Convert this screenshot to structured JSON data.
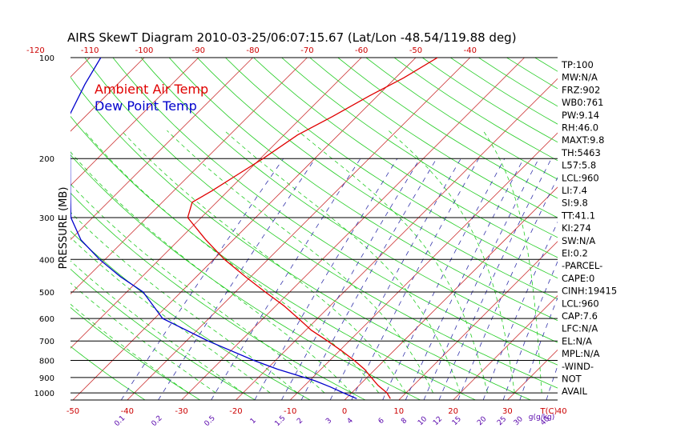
{
  "chart_data": {
    "type": "line",
    "title": "AIRS SkewT Diagram 2010-03-25/06:07:15.67 (Lat/Lon -48.54/119.88 deg)",
    "ylabel": "PRESSURE (MB)",
    "xlabel": "T(C)",
    "mixing_ratio_label": "g(g/kg)",
    "y_scale": "log",
    "ylim": [
      1050,
      100
    ],
    "pressure_ticks": [
      100,
      200,
      300,
      400,
      500,
      600,
      700,
      800,
      900,
      1000
    ],
    "bottom_temp_ticks": [
      -50,
      -40,
      -30,
      -20,
      -10,
      0,
      10,
      20,
      30,
      40
    ],
    "top_temp_ticks": [
      -120,
      -110,
      -100,
      -90,
      -80,
      -70,
      -60,
      -50,
      -40
    ],
    "mixing_ratio_ticks": [
      "0.1",
      "0.2",
      "0.5",
      "1",
      "1.5",
      "2",
      "3",
      "4",
      "6",
      "8",
      "10",
      "12",
      "15",
      "20",
      "25",
      "30",
      "40"
    ],
    "legend": [
      {
        "name": "Ambient Air Temp",
        "color": "#e00000"
      },
      {
        "name": "Dew Point Temp",
        "color": "#0000cc"
      }
    ],
    "series": [
      {
        "name": "Ambient Air Temp",
        "color": "#e00000",
        "pressure": [
          1040,
          1000,
          950,
          900,
          850,
          800,
          750,
          700,
          650,
          600,
          550,
          500,
          450,
          400,
          350,
          300,
          270,
          250,
          220,
          200,
          170,
          150,
          130,
          115,
          100
        ],
        "temperature": [
          8.2,
          6.5,
          3.5,
          0.8,
          -2.0,
          -5.5,
          -9.5,
          -14,
          -19,
          -23.5,
          -28.5,
          -34.5,
          -41,
          -48,
          -55,
          -62.5,
          -64.5,
          -63,
          -61,
          -59.5,
          -57.5,
          -54.5,
          -51.5,
          -48.5,
          -46
        ]
      },
      {
        "name": "Dew Point Temp",
        "color": "#0000cc",
        "pressure": [
          1040,
          1000,
          960,
          920,
          900,
          850,
          800,
          700,
          600,
          500,
          450,
          400,
          350,
          300,
          250,
          200,
          150,
          120,
          100
        ],
        "temperature": [
          2.0,
          -1.5,
          -5,
          -9,
          -11.5,
          -18,
          -24,
          -36,
          -48.5,
          -57,
          -64,
          -71,
          -78,
          -84,
          -89,
          -95,
          -103,
          -106,
          -108
        ]
      }
    ],
    "indices": [
      "TP:100",
      "MW:N/A",
      "FRZ:902",
      "WB0:761",
      "PW:9.14",
      "RH:46.0",
      "MAXT:9.8",
      "TH:5463",
      "L57:5.8",
      "LCL:960",
      "LI:7.4",
      "SI:9.8",
      "TT:41.1",
      "KI:274",
      "SW:N/A",
      "EI:0.2",
      "-PARCEL-",
      "CAPE:0",
      "CINH:19415",
      "LCL:960",
      "CAP:7.6",
      "LFC:N/A",
      "EL:N/A",
      "MPL:N/A",
      "-WIND-",
      "NOT",
      "AVAIL"
    ],
    "colors": {
      "isotherm": "#cc3333",
      "dry_adiabat": "#22cc22",
      "moist_adiabat": "#22cc22",
      "mixing_ratio": "#3333aa",
      "isobar": "#000000",
      "axis_text": "#cc0000",
      "mixing_text": "#5500aa"
    }
  }
}
